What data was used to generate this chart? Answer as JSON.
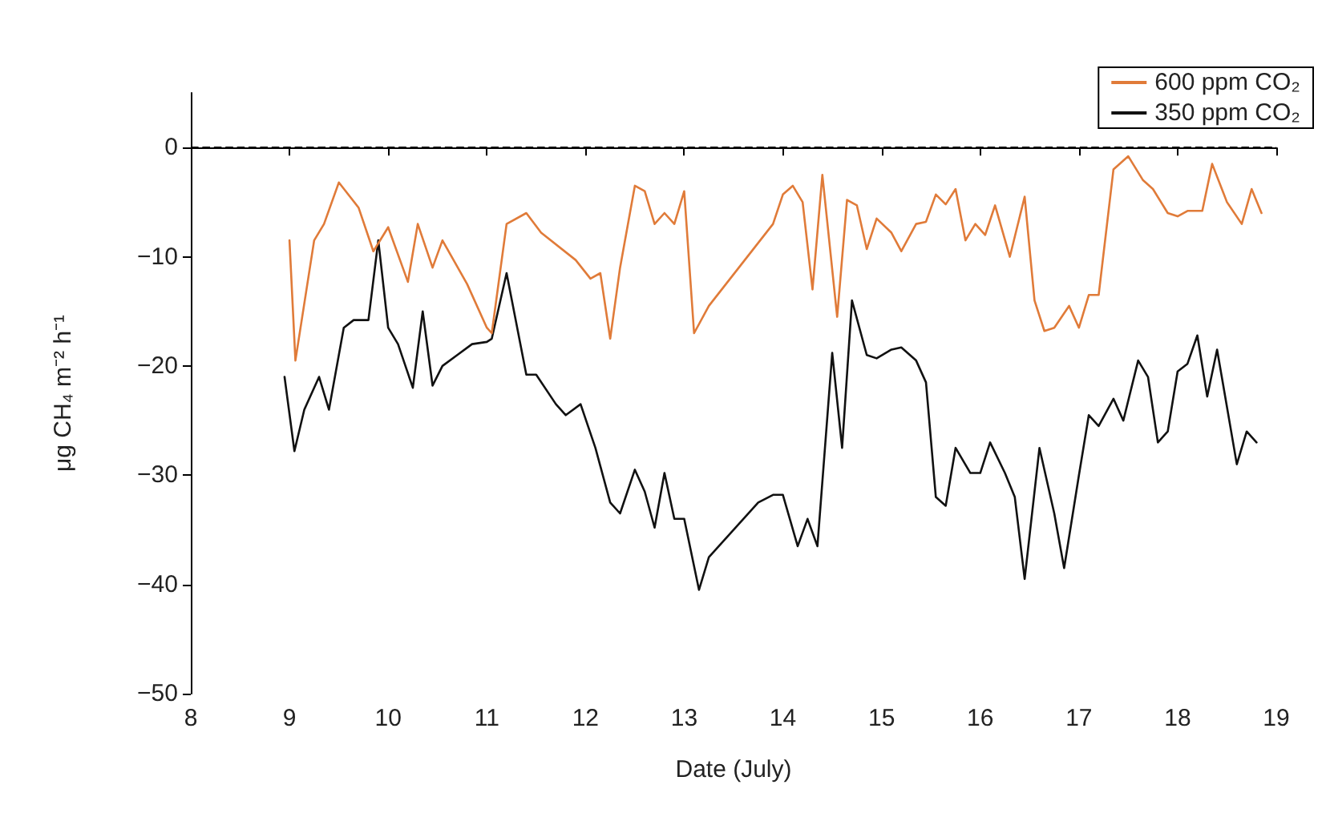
{
  "chart_data": {
    "type": "line",
    "xlabel": "Date (July)",
    "ylabel": "μg CH₄ m⁻² h⁻¹",
    "xlim": [
      8,
      19
    ],
    "xticks": [
      8,
      9,
      10,
      11,
      12,
      13,
      14,
      15,
      16,
      17,
      18,
      19
    ],
    "ylim": [
      -50,
      5
    ],
    "yticks": [
      -50,
      -40,
      -30,
      -20,
      -10,
      0
    ],
    "grid": false,
    "legend": "top right",
    "marker": "none",
    "line_style": "solid",
    "ref_lines": [
      {
        "axis": "y",
        "value": 0,
        "label": null,
        "color": "#000000",
        "line_style": "dashed"
      }
    ],
    "series": [
      {
        "name": "600 ppm CO₂",
        "color": "#e07b39",
        "x": [
          9.0,
          9.06,
          9.25,
          9.35,
          9.5,
          9.7,
          9.85,
          10.0,
          10.2,
          10.3,
          10.45,
          10.55,
          10.8,
          11.0,
          11.05,
          11.2,
          11.4,
          11.55,
          11.9,
          12.05,
          12.15,
          12.25,
          12.35,
          12.5,
          12.6,
          12.7,
          12.8,
          12.9,
          13.0,
          13.1,
          13.25,
          13.9,
          14.0,
          14.1,
          14.2,
          14.3,
          14.4,
          14.55,
          14.65,
          14.75,
          14.85,
          14.95,
          15.1,
          15.2,
          15.35,
          15.45,
          15.55,
          15.65,
          15.75,
          15.85,
          15.95,
          16.05,
          16.15,
          16.3,
          16.45,
          16.55,
          16.65,
          16.75,
          16.9,
          17.0,
          17.1,
          17.2,
          17.35,
          17.5,
          17.65,
          17.75,
          17.9,
          18.0,
          18.1,
          18.25,
          18.35,
          18.5,
          18.65,
          18.75,
          18.85
        ],
        "values": [
          -8.5,
          -19.5,
          -8.5,
          -7,
          -3.2,
          -5.5,
          -9.5,
          -7.3,
          -12.3,
          -7,
          -11,
          -8.5,
          -12.5,
          -16.5,
          -17,
          -7,
          -6,
          -7.8,
          -10.3,
          -12,
          -11.5,
          -17.5,
          -11,
          -3.5,
          -4,
          -7,
          -6,
          -7,
          -4,
          -17,
          -14.5,
          -7,
          -4.3,
          -3.5,
          -5,
          -13,
          -2.5,
          -15.5,
          -4.8,
          -5.3,
          -9.3,
          -6.5,
          -7.8,
          -9.5,
          -7,
          -6.8,
          -4.3,
          -5.2,
          -3.8,
          -8.5,
          -7,
          -8,
          -5.3,
          -10,
          -4.5,
          -14,
          -16.8,
          -16.5,
          -14.5,
          -16.5,
          -13.5,
          -13.5,
          -2,
          -0.8,
          -3,
          -3.8,
          -6,
          -6.3,
          -5.8,
          -5.8,
          -1.5,
          -5,
          -7,
          -3.8,
          -6
        ]
      },
      {
        "name": "350 ppm CO₂",
        "color": "#111111",
        "x": [
          8.95,
          9.05,
          9.15,
          9.3,
          9.4,
          9.55,
          9.65,
          9.8,
          9.9,
          10.0,
          10.1,
          10.25,
          10.35,
          10.45,
          10.55,
          10.7,
          10.85,
          11.0,
          11.05,
          11.2,
          11.4,
          11.5,
          11.7,
          11.8,
          11.95,
          12.1,
          12.25,
          12.35,
          12.5,
          12.6,
          12.7,
          12.8,
          12.9,
          13.0,
          13.15,
          13.25,
          13.75,
          13.9,
          14.0,
          14.15,
          14.25,
          14.35,
          14.5,
          14.6,
          14.7,
          14.85,
          14.95,
          15.1,
          15.2,
          15.35,
          15.45,
          15.55,
          15.65,
          15.75,
          15.9,
          16.0,
          16.1,
          16.25,
          16.35,
          16.45,
          16.6,
          16.75,
          16.85,
          17.0,
          17.1,
          17.2,
          17.35,
          17.45,
          17.6,
          17.7,
          17.8,
          17.9,
          18.0,
          18.1,
          18.2,
          18.3,
          18.4,
          18.6,
          18.7,
          18.8
        ],
        "values": [
          -21,
          -27.8,
          -24,
          -21,
          -24,
          -16.5,
          -15.8,
          -15.8,
          -8.5,
          -16.5,
          -18,
          -22,
          -15,
          -21.8,
          -20,
          -19,
          -18,
          -17.8,
          -17.5,
          -11.5,
          -20.8,
          -20.8,
          -23.5,
          -24.5,
          -23.5,
          -27.5,
          -32.5,
          -33.5,
          -29.5,
          -31.5,
          -34.8,
          -29.8,
          -34,
          -34,
          -40.5,
          -37.5,
          -32.5,
          -31.8,
          -31.8,
          -36.5,
          -34,
          -36.5,
          -18.8,
          -27.5,
          -14,
          -19,
          -19.3,
          -18.5,
          -18.3,
          -19.5,
          -21.5,
          -32,
          -32.8,
          -27.5,
          -29.8,
          -29.8,
          -27,
          -29.8,
          -32,
          -39.5,
          -27.5,
          -33.5,
          -38.5,
          -30,
          -24.5,
          -25.5,
          -23,
          -25,
          -19.5,
          -21,
          -27,
          -26,
          -20.5,
          -19.8,
          -17.2,
          -22.8,
          -18.5,
          -29,
          -26,
          -27
        ]
      }
    ]
  }
}
